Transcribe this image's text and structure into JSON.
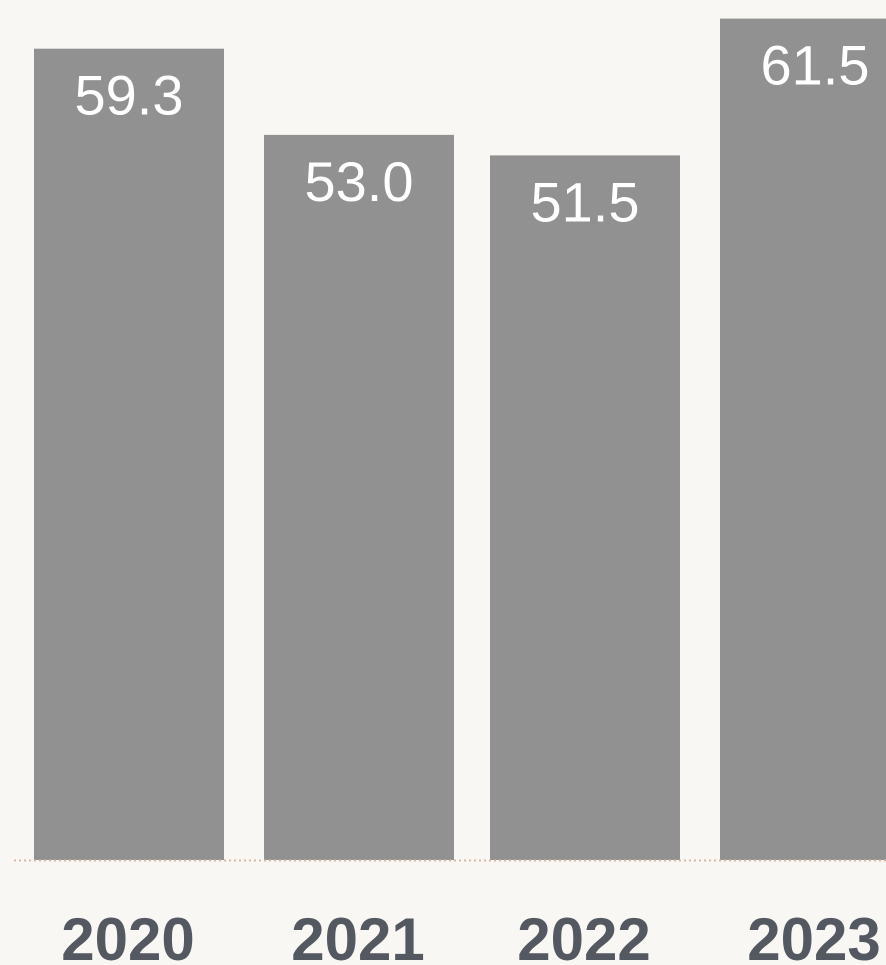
{
  "chart_data": {
    "type": "bar",
    "categories": [
      "2020",
      "2021",
      "2022",
      "2023"
    ],
    "values": [
      59.3,
      53.0,
      51.5,
      61.5
    ],
    "value_labels": [
      "59.3",
      "53.0",
      "51.5",
      "61.5"
    ],
    "title": "",
    "xlabel": "",
    "ylabel": "",
    "ylim": [
      0,
      62.2
    ],
    "grid": false,
    "legend": "none",
    "colors": {
      "bar": "#919191",
      "value_label": "#ffffff",
      "category_label": "#545860",
      "baseline": "#d9b8a3",
      "background": "#f8f7f3"
    }
  }
}
